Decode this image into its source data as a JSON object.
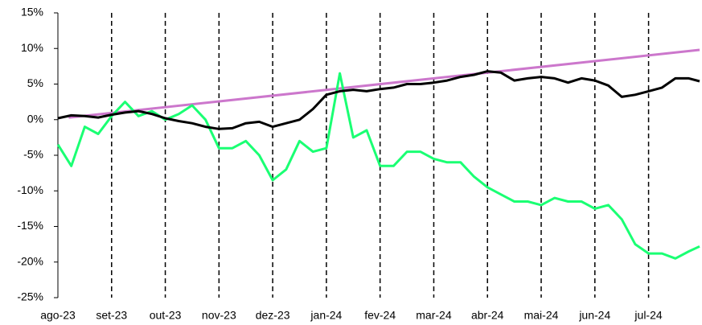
{
  "chart_data": {
    "type": "line",
    "xlim": [
      0,
      11.95
    ],
    "xticks": [
      {
        "value": 0,
        "label": "ago-23"
      },
      {
        "value": 1,
        "label": "set-23"
      },
      {
        "value": 2,
        "label": "out-23"
      },
      {
        "value": 3,
        "label": "nov-23"
      },
      {
        "value": 4,
        "label": "dez-23"
      },
      {
        "value": 5,
        "label": "jan-24"
      },
      {
        "value": 6,
        "label": "fev-24"
      },
      {
        "value": 7,
        "label": "mar-24"
      },
      {
        "value": 8,
        "label": "abr-24"
      },
      {
        "value": 9,
        "label": "mai-24"
      },
      {
        "value": 10,
        "label": "jun-24"
      },
      {
        "value": 11,
        "label": "jul-24"
      }
    ],
    "ylim": [
      -25,
      15
    ],
    "yticks": [
      {
        "value": -25,
        "label": "-25%"
      },
      {
        "value": -20,
        "label": "-20%"
      },
      {
        "value": -15,
        "label": "-15%"
      },
      {
        "value": -10,
        "label": "-10%"
      },
      {
        "value": -5,
        "label": "-5%"
      },
      {
        "value": 0,
        "label": "0%"
      },
      {
        "value": 5,
        "label": "5%"
      },
      {
        "value": 10,
        "label": "10%"
      },
      {
        "value": 15,
        "label": "15%"
      }
    ],
    "grid": true,
    "series": [
      {
        "color": "#cc77cc",
        "x": [
          0.2,
          11.95
        ],
        "values": [
          0.3,
          9.8
        ]
      },
      {
        "color": "#1aff73",
        "x": [
          0,
          0.25,
          0.5,
          0.75,
          1,
          1.25,
          1.5,
          1.75,
          2,
          2.25,
          2.5,
          2.75,
          3,
          3.25,
          3.5,
          3.75,
          4,
          4.25,
          4.5,
          4.75,
          5,
          5.25,
          5.5,
          5.75,
          6,
          6.25,
          6.5,
          6.75,
          7,
          7.25,
          7.5,
          7.75,
          8,
          8.25,
          8.5,
          8.75,
          9,
          9.25,
          9.5,
          9.75,
          10,
          10.25,
          10.5,
          10.75,
          11,
          11.25,
          11.5,
          11.75,
          11.95
        ],
        "values": [
          -3.5,
          -6.5,
          -1.0,
          -2.0,
          0.5,
          2.5,
          0.5,
          1.2,
          0.0,
          0.8,
          2.0,
          0.0,
          -4.0,
          -4.0,
          -3.0,
          -5.0,
          -8.5,
          -7.0,
          -3.0,
          -4.5,
          -4.0,
          6.5,
          -2.5,
          -1.5,
          -6.5,
          -6.5,
          -4.5,
          -4.5,
          -5.5,
          -6.0,
          -6.0,
          -8.0,
          -9.5,
          -10.5,
          -11.5,
          -11.5,
          -12.0,
          -11.0,
          -11.5,
          -11.5,
          -12.5,
          -12.0,
          -14.0,
          -17.5,
          -18.8,
          -18.8,
          -19.5,
          -18.5,
          -17.8
        ]
      },
      {
        "color": "#000000",
        "x": [
          0,
          0.25,
          0.5,
          0.75,
          1,
          1.25,
          1.5,
          1.75,
          2,
          2.25,
          2.5,
          2.75,
          3,
          3.25,
          3.5,
          3.75,
          4,
          4.25,
          4.5,
          4.75,
          5,
          5.25,
          5.5,
          5.75,
          6,
          6.25,
          6.5,
          6.75,
          7,
          7.25,
          7.5,
          7.75,
          8,
          8.25,
          8.5,
          8.75,
          9,
          9.25,
          9.5,
          9.75,
          10,
          10.25,
          10.5,
          10.75,
          11,
          11.25,
          11.5,
          11.75,
          11.95
        ],
        "values": [
          0.2,
          0.6,
          0.5,
          0.3,
          0.7,
          1.0,
          1.2,
          0.8,
          0.2,
          -0.2,
          -0.5,
          -1.0,
          -1.3,
          -1.2,
          -0.5,
          -0.3,
          -1.0,
          -0.5,
          0.0,
          1.5,
          3.5,
          4.0,
          4.2,
          4.0,
          4.3,
          4.5,
          5.0,
          5.0,
          5.2,
          5.5,
          6.0,
          6.3,
          6.8,
          6.6,
          5.5,
          5.8,
          6.0,
          5.8,
          5.2,
          5.8,
          5.5,
          4.8,
          3.2,
          3.5,
          4.0,
          4.5,
          5.8,
          5.8,
          5.4
        ]
      }
    ]
  }
}
